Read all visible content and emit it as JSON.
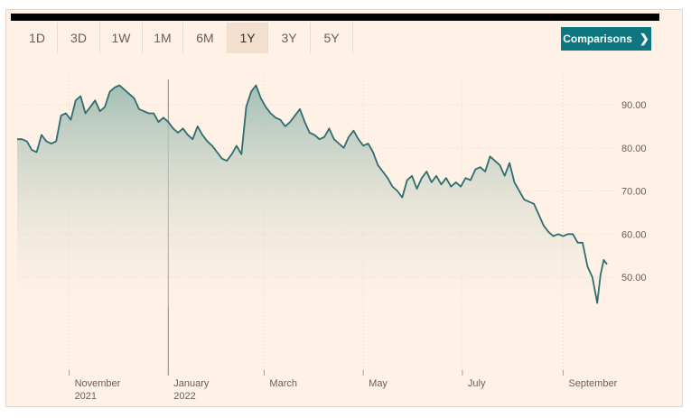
{
  "range_tabs": [
    {
      "label": "1D",
      "active": false
    },
    {
      "label": "3D",
      "active": false
    },
    {
      "label": "1W",
      "active": false
    },
    {
      "label": "1M",
      "active": false
    },
    {
      "label": "6M",
      "active": false
    },
    {
      "label": "1Y",
      "active": true
    },
    {
      "label": "3Y",
      "active": false
    },
    {
      "label": "5Y",
      "active": false
    }
  ],
  "comparisons_button": {
    "label": "Comparisons",
    "icon": "chevron-right-icon"
  },
  "colors": {
    "line": "#2e6e70",
    "fill_top": "#9fbcb2",
    "background": "#fff1e5",
    "accent": "#0d7680"
  },
  "chart_data": {
    "type": "area",
    "title": "",
    "xlabel": "",
    "ylabel": "",
    "ylim": [
      35,
      100
    ],
    "y_ticks": [
      {
        "value": 50,
        "label": "50.00"
      },
      {
        "value": 60,
        "label": "60.00"
      },
      {
        "value": 70,
        "label": "70.00"
      },
      {
        "value": 80,
        "label": "80.00"
      },
      {
        "value": 90,
        "label": "90.00"
      }
    ],
    "x_ticks": [
      {
        "label": "November",
        "sublabel": "2021",
        "date": "2021-11-01"
      },
      {
        "label": "January",
        "sublabel": "2022",
        "date": "2022-01-01"
      },
      {
        "label": "March",
        "sublabel": "",
        "date": "2022-03-01"
      },
      {
        "label": "May",
        "sublabel": "",
        "date": "2022-05-01"
      },
      {
        "label": "July",
        "sublabel": "",
        "date": "2022-07-01"
      },
      {
        "label": "September",
        "sublabel": "",
        "date": "2022-09-01"
      }
    ],
    "x_range": [
      "2021-09-30",
      "2022-10-03"
    ],
    "grid": true,
    "series": [
      {
        "values": [
          [
            "2021-09-30",
            82.0
          ],
          [
            "2021-10-03",
            82.0
          ],
          [
            "2021-10-06",
            81.5
          ],
          [
            "2021-10-09",
            79.5
          ],
          [
            "2021-10-12",
            79.0
          ],
          [
            "2021-10-15",
            83.0
          ],
          [
            "2021-10-18",
            81.5
          ],
          [
            "2021-10-21",
            81.0
          ],
          [
            "2021-10-24",
            81.5
          ],
          [
            "2021-10-27",
            87.5
          ],
          [
            "2021-10-30",
            88.0
          ],
          [
            "2021-11-02",
            86.5
          ],
          [
            "2021-11-05",
            91.0
          ],
          [
            "2021-11-08",
            92.0
          ],
          [
            "2021-11-11",
            88.0
          ],
          [
            "2021-11-14",
            89.5
          ],
          [
            "2021-11-17",
            91.0
          ],
          [
            "2021-11-20",
            88.5
          ],
          [
            "2021-11-23",
            89.5
          ],
          [
            "2021-11-26",
            93.0
          ],
          [
            "2021-11-29",
            94.0
          ],
          [
            "2021-12-02",
            94.5
          ],
          [
            "2021-12-05",
            93.5
          ],
          [
            "2021-12-08",
            92.5
          ],
          [
            "2021-12-11",
            91.5
          ],
          [
            "2021-12-14",
            89.0
          ],
          [
            "2021-12-17",
            88.5
          ],
          [
            "2021-12-20",
            88.0
          ],
          [
            "2021-12-23",
            88.0
          ],
          [
            "2021-12-26",
            86.0
          ],
          [
            "2021-12-29",
            87.0
          ],
          [
            "2022-01-01",
            86.0
          ],
          [
            "2022-01-04",
            84.5
          ],
          [
            "2022-01-07",
            83.5
          ],
          [
            "2022-01-10",
            84.5
          ],
          [
            "2022-01-13",
            83.0
          ],
          [
            "2022-01-16",
            82.0
          ],
          [
            "2022-01-19",
            85.0
          ],
          [
            "2022-01-22",
            83.0
          ],
          [
            "2022-01-25",
            81.5
          ],
          [
            "2022-01-28",
            80.5
          ],
          [
            "2022-01-31",
            79.0
          ],
          [
            "2022-02-03",
            77.5
          ],
          [
            "2022-02-06",
            77.0
          ],
          [
            "2022-02-09",
            78.5
          ],
          [
            "2022-02-12",
            80.5
          ],
          [
            "2022-02-15",
            78.5
          ],
          [
            "2022-02-18",
            89.5
          ],
          [
            "2022-02-21",
            93.0
          ],
          [
            "2022-02-24",
            94.5
          ],
          [
            "2022-02-27",
            91.5
          ],
          [
            "2022-03-02",
            89.5
          ],
          [
            "2022-03-05",
            88.0
          ],
          [
            "2022-03-08",
            87.0
          ],
          [
            "2022-03-11",
            86.5
          ],
          [
            "2022-03-14",
            85.0
          ],
          [
            "2022-03-17",
            86.0
          ],
          [
            "2022-03-20",
            87.5
          ],
          [
            "2022-03-23",
            89.0
          ],
          [
            "2022-03-26",
            86.0
          ],
          [
            "2022-03-29",
            83.5
          ],
          [
            "2022-04-01",
            83.0
          ],
          [
            "2022-04-04",
            82.0
          ],
          [
            "2022-04-07",
            82.5
          ],
          [
            "2022-04-10",
            84.5
          ],
          [
            "2022-04-13",
            82.0
          ],
          [
            "2022-04-16",
            81.0
          ],
          [
            "2022-04-19",
            80.0
          ],
          [
            "2022-04-22",
            82.5
          ],
          [
            "2022-04-25",
            84.0
          ],
          [
            "2022-04-28",
            82.0
          ],
          [
            "2022-05-01",
            80.5
          ],
          [
            "2022-05-04",
            81.0
          ],
          [
            "2022-05-07",
            79.0
          ],
          [
            "2022-05-10",
            76.0
          ],
          [
            "2022-05-13",
            74.5
          ],
          [
            "2022-05-16",
            73.0
          ],
          [
            "2022-05-19",
            71.0
          ],
          [
            "2022-05-22",
            70.0
          ],
          [
            "2022-05-25",
            68.5
          ],
          [
            "2022-05-28",
            72.5
          ],
          [
            "2022-05-31",
            73.5
          ],
          [
            "2022-06-03",
            70.5
          ],
          [
            "2022-06-06",
            73.0
          ],
          [
            "2022-06-09",
            74.5
          ],
          [
            "2022-06-12",
            72.0
          ],
          [
            "2022-06-15",
            73.5
          ],
          [
            "2022-06-18",
            71.5
          ],
          [
            "2022-06-21",
            73.0
          ],
          [
            "2022-06-24",
            71.0
          ],
          [
            "2022-06-27",
            72.0
          ],
          [
            "2022-06-30",
            71.0
          ],
          [
            "2022-07-03",
            73.0
          ],
          [
            "2022-07-06",
            72.5
          ],
          [
            "2022-07-09",
            75.0
          ],
          [
            "2022-07-12",
            75.5
          ],
          [
            "2022-07-15",
            74.5
          ],
          [
            "2022-07-18",
            78.0
          ],
          [
            "2022-07-21",
            77.0
          ],
          [
            "2022-07-24",
            76.0
          ],
          [
            "2022-07-27",
            73.5
          ],
          [
            "2022-07-30",
            76.5
          ],
          [
            "2022-08-02",
            72.0
          ],
          [
            "2022-08-05",
            70.0
          ],
          [
            "2022-08-08",
            68.0
          ],
          [
            "2022-08-11",
            67.5
          ],
          [
            "2022-08-14",
            67.0
          ],
          [
            "2022-08-17",
            64.5
          ],
          [
            "2022-08-20",
            62.0
          ],
          [
            "2022-08-23",
            60.5
          ],
          [
            "2022-08-26",
            59.5
          ],
          [
            "2022-08-29",
            60.0
          ],
          [
            "2022-09-01",
            59.5
          ],
          [
            "2022-09-04",
            60.0
          ],
          [
            "2022-09-07",
            60.0
          ],
          [
            "2022-09-10",
            58.0
          ],
          [
            "2022-09-13",
            58.0
          ],
          [
            "2022-09-16",
            52.5
          ],
          [
            "2022-09-19",
            50.0
          ],
          [
            "2022-09-22",
            44.0
          ],
          [
            "2022-09-24",
            50.5
          ],
          [
            "2022-09-26",
            54.0
          ],
          [
            "2022-09-28",
            53.0
          ]
        ]
      }
    ]
  }
}
